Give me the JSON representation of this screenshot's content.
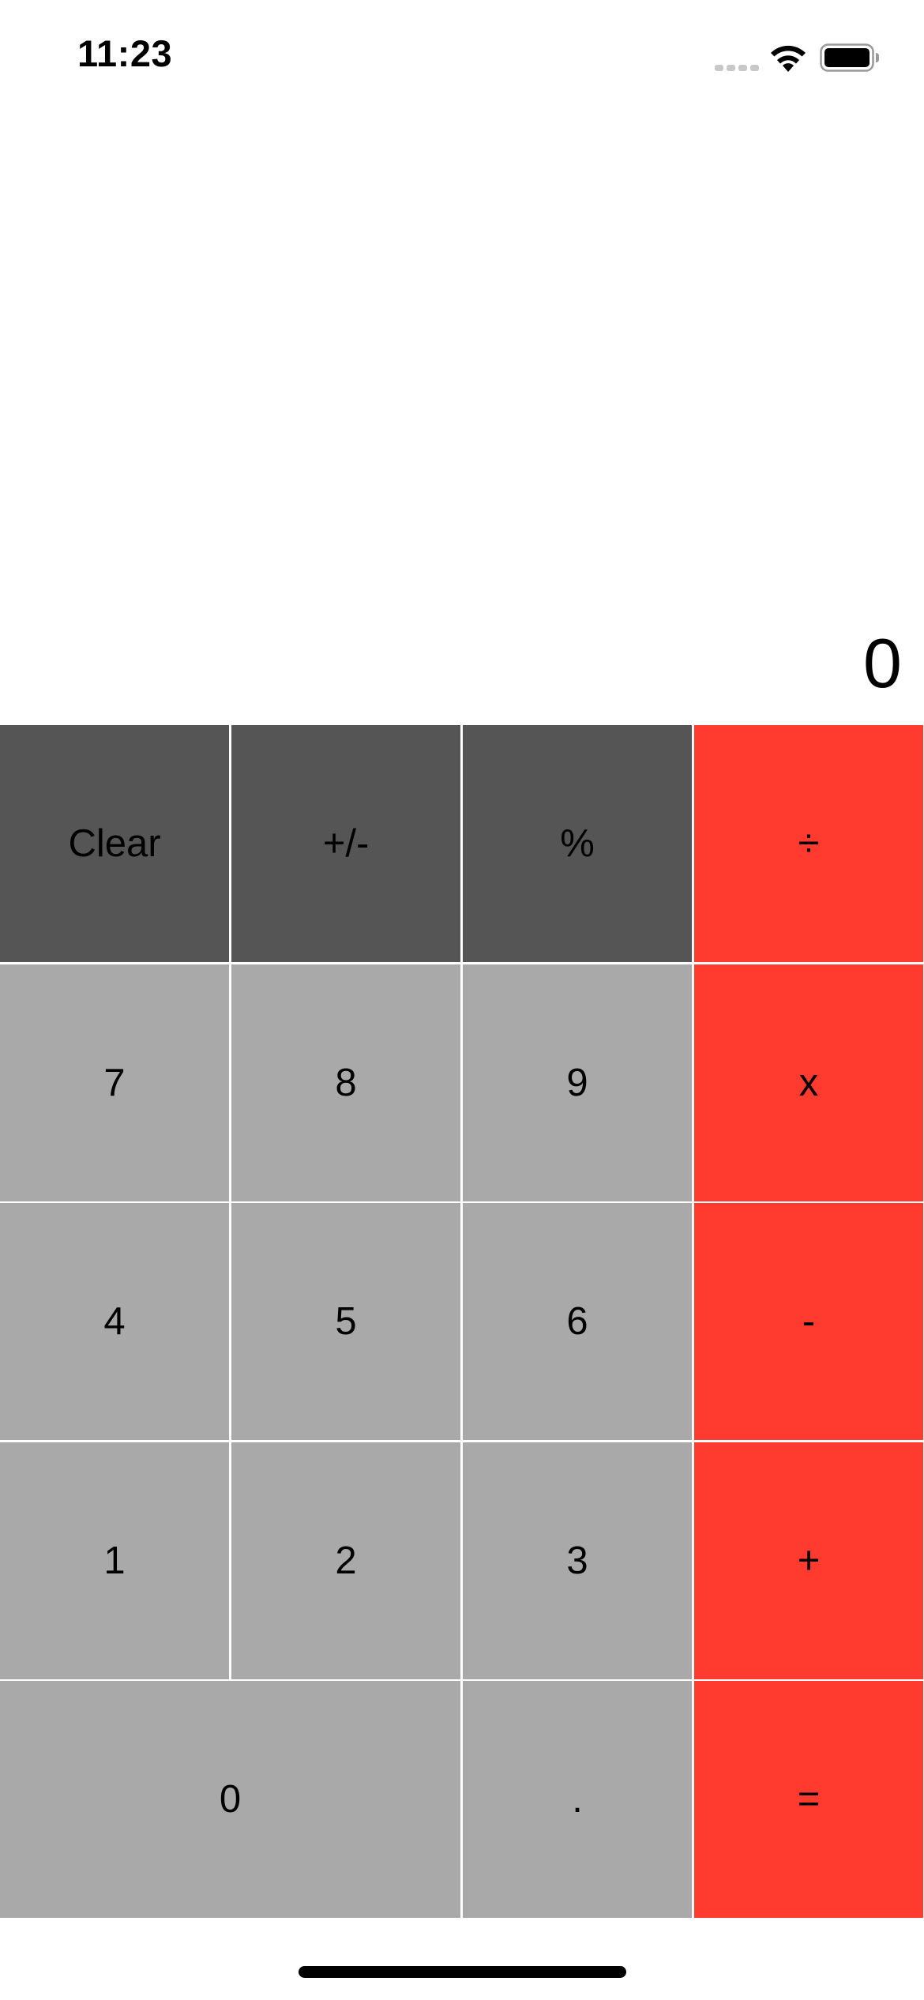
{
  "status_bar": {
    "time": "11:23",
    "icons": [
      "cellular-signal-icon",
      "wifi-icon",
      "battery-icon"
    ]
  },
  "display": {
    "value": "0"
  },
  "keypad": {
    "colors": {
      "function_keys": "#555555",
      "number_keys": "#a9a9a9",
      "operator_keys": "#ff3b30"
    },
    "rows": [
      [
        "Clear",
        "+/-",
        "%",
        "÷"
      ],
      [
        "7",
        "8",
        "9",
        "x"
      ],
      [
        "4",
        "5",
        "6",
        "-"
      ],
      [
        "1",
        "2",
        "3",
        "+"
      ],
      [
        "0",
        ".",
        "="
      ]
    ]
  }
}
